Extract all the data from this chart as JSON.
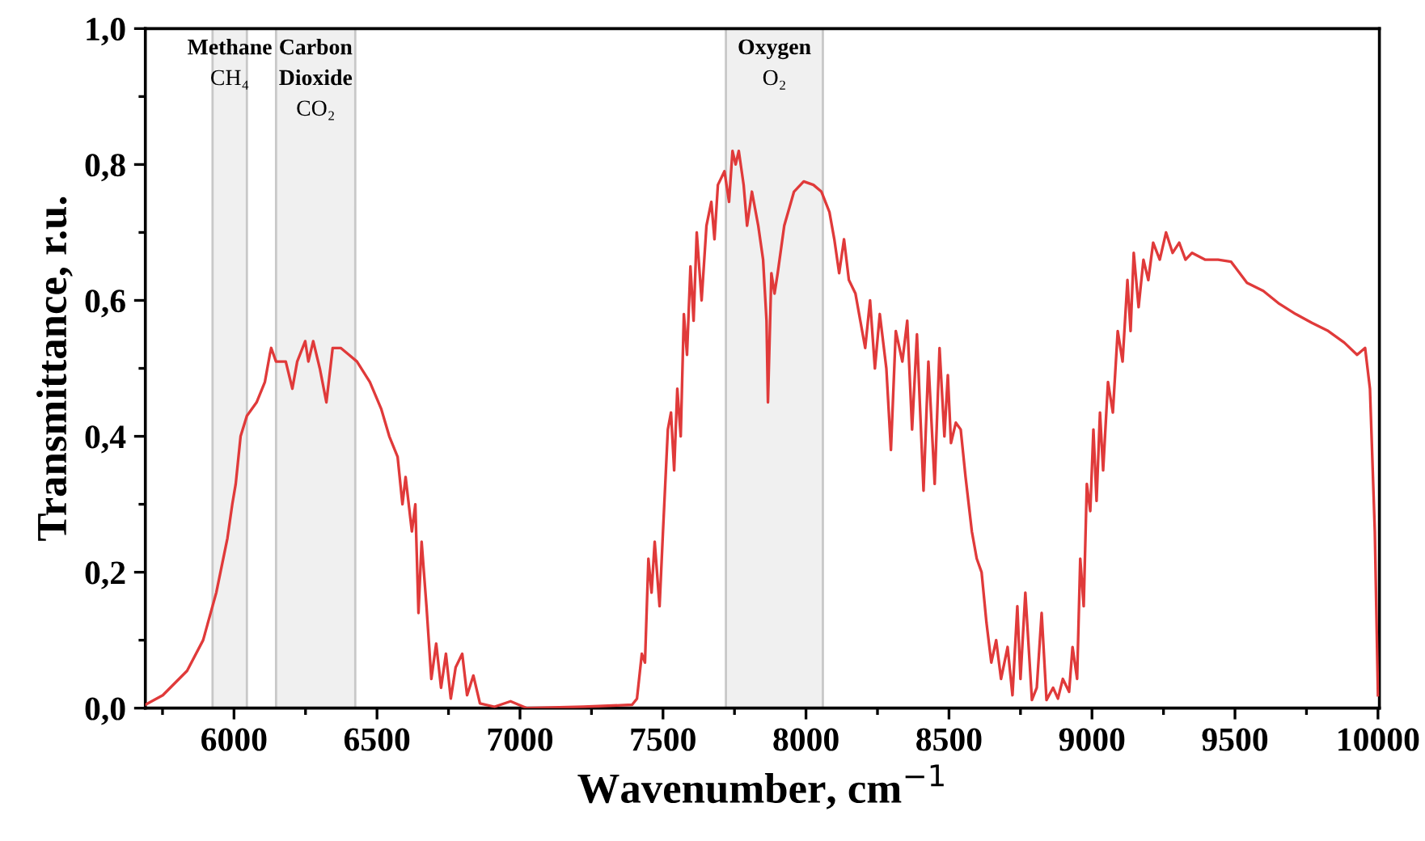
{
  "chart_data": {
    "type": "line",
    "xlabel": "Wavenumber, cm$^{−1}$",
    "ylabel": "Transmittance, r.u.",
    "xlim": [
      5690,
      10005
    ],
    "ylim": [
      0,
      1.0
    ],
    "xticks": [
      {
        "value": 5750,
        "label": null
      },
      6000,
      {
        "value": 6250,
        "label": null
      },
      6500,
      {
        "value": 6750,
        "label": null
      },
      7000,
      {
        "value": 7250,
        "label": null
      },
      7500,
      {
        "value": 7750,
        "label": null
      },
      8000,
      {
        "value": 8250,
        "label": null
      },
      8500,
      {
        "value": 8750,
        "label": null
      },
      9000,
      {
        "value": 9250,
        "label": null
      },
      9500,
      {
        "value": 9750,
        "label": null
      },
      10000
    ],
    "yticks": [
      {
        "value": 0,
        "label": "0,0"
      },
      {
        "value": 0.1,
        "label": null
      },
      {
        "value": 0.2,
        "label": "0,2"
      },
      {
        "value": 0.3,
        "label": null
      },
      {
        "value": 0.4,
        "label": "0,4"
      },
      {
        "value": 0.5,
        "label": null
      },
      {
        "value": 0.6,
        "label": "0,6"
      },
      {
        "value": 0.7,
        "label": null
      },
      {
        "value": 0.8,
        "label": "0,8"
      },
      {
        "value": 0.9,
        "label": null
      },
      {
        "value": 1.0,
        "label": "1,0"
      }
    ],
    "grid": false,
    "legend": false,
    "marker": "none",
    "line_style": "solid",
    "bands": [
      {
        "axis": "x",
        "from": 5925,
        "to": 6045,
        "label": "Methane\nCH₄",
        "color": "#f0f0f0"
      },
      {
        "axis": "x",
        "from": 6147,
        "to": 6424,
        "label": "Carbon\nDioxide\nCO₂",
        "color": "#f0f0f0"
      },
      {
        "axis": "x",
        "from": 7720,
        "to": 8059,
        "label": "Oxygen\nO₂",
        "color": "#f0f0f0"
      }
    ],
    "series": [
      {
        "color": "#e03a3a",
        "x": [
          5690,
          5751,
          5836,
          5892,
          5938,
          5977,
          5994,
          6006,
          6023,
          6045,
          6079,
          6108,
          6125,
          6130,
          6147,
          6181,
          6204,
          6221,
          6249,
          6260,
          6277,
          6300,
          6323,
          6345,
          6373,
          6402,
          6430,
          6475,
          6515,
          6543,
          6572,
          6589,
          6600,
          6622,
          6634,
          6645,
          6656,
          6673,
          6690,
          6707,
          6724,
          6741,
          6758,
          6775,
          6798,
          6815,
          6837,
          6860,
          6911,
          6967,
          7024,
          7222,
          7392,
          7409,
          7426,
          7437,
          7449,
          7460,
          7471,
          7488,
          7500,
          7517,
          7528,
          7539,
          7550,
          7562,
          7573,
          7584,
          7596,
          7607,
          7618,
          7635,
          7652,
          7669,
          7680,
          7692,
          7715,
          7731,
          7743,
          7754,
          7765,
          7782,
          7794,
          7811,
          7833,
          7850,
          7862,
          7867,
          7879,
          7890,
          7901,
          7924,
          7958,
          7992,
          8026,
          8054,
          8082,
          8099,
          8116,
          8133,
          8150,
          8173,
          8190,
          8207,
          8224,
          8241,
          8258,
          8281,
          8297,
          8314,
          8337,
          8354,
          8371,
          8388,
          8411,
          8428,
          8450,
          8467,
          8484,
          8496,
          8507,
          8524,
          8541,
          8558,
          8580,
          8597,
          8614,
          8631,
          8648,
          8665,
          8682,
          8705,
          8722,
          8739,
          8750,
          8767,
          8790,
          8807,
          8824,
          8841,
          8864,
          8881,
          8898,
          8920,
          8932,
          8948,
          8959,
          8971,
          8982,
          8994,
          9005,
          9016,
          9028,
          9039,
          9056,
          9073,
          9090,
          9107,
          9124,
          9135,
          9146,
          9163,
          9180,
          9197,
          9214,
          9237,
          9259,
          9282,
          9305,
          9327,
          9350,
          9395,
          9441,
          9486,
          9542,
          9599,
          9655,
          9712,
          9769,
          9826,
          9882,
          9927,
          9955,
          9972,
          9989,
          10000
        ],
        "values": [
          0.005,
          0.019,
          0.055,
          0.1,
          0.17,
          0.25,
          0.3,
          0.33,
          0.4,
          0.43,
          0.45,
          0.48,
          0.52,
          0.53,
          0.51,
          0.51,
          0.47,
          0.51,
          0.54,
          0.51,
          0.54,
          0.5,
          0.45,
          0.53,
          0.53,
          0.52,
          0.51,
          0.48,
          0.44,
          0.4,
          0.37,
          0.3,
          0.34,
          0.26,
          0.3,
          0.14,
          0.245,
          0.15,
          0.043,
          0.095,
          0.03,
          0.08,
          0.014,
          0.06,
          0.08,
          0.019,
          0.048,
          0.007,
          0.002,
          0.01,
          0.0,
          0.002,
          0.005,
          0.014,
          0.08,
          0.067,
          0.22,
          0.17,
          0.245,
          0.15,
          0.26,
          0.41,
          0.435,
          0.35,
          0.47,
          0.4,
          0.58,
          0.52,
          0.65,
          0.57,
          0.7,
          0.6,
          0.71,
          0.745,
          0.69,
          0.77,
          0.79,
          0.745,
          0.82,
          0.8,
          0.82,
          0.77,
          0.71,
          0.76,
          0.71,
          0.66,
          0.57,
          0.45,
          0.64,
          0.61,
          0.64,
          0.71,
          0.76,
          0.775,
          0.77,
          0.76,
          0.73,
          0.69,
          0.64,
          0.69,
          0.63,
          0.61,
          0.57,
          0.53,
          0.6,
          0.5,
          0.58,
          0.5,
          0.38,
          0.555,
          0.51,
          0.57,
          0.41,
          0.55,
          0.32,
          0.51,
          0.33,
          0.53,
          0.4,
          0.49,
          0.39,
          0.42,
          0.41,
          0.34,
          0.26,
          0.22,
          0.2,
          0.126,
          0.067,
          0.1,
          0.043,
          0.09,
          0.019,
          0.15,
          0.043,
          0.17,
          0.012,
          0.03,
          0.14,
          0.012,
          0.03,
          0.014,
          0.043,
          0.024,
          0.09,
          0.043,
          0.22,
          0.15,
          0.33,
          0.29,
          0.41,
          0.305,
          0.435,
          0.35,
          0.48,
          0.435,
          0.555,
          0.51,
          0.63,
          0.555,
          0.67,
          0.59,
          0.66,
          0.63,
          0.685,
          0.66,
          0.7,
          0.67,
          0.685,
          0.66,
          0.67,
          0.66,
          0.66,
          0.657,
          0.626,
          0.614,
          0.595,
          0.58,
          0.567,
          0.555,
          0.538,
          0.52,
          0.53,
          0.47,
          0.26,
          0.019
        ]
      }
    ]
  }
}
